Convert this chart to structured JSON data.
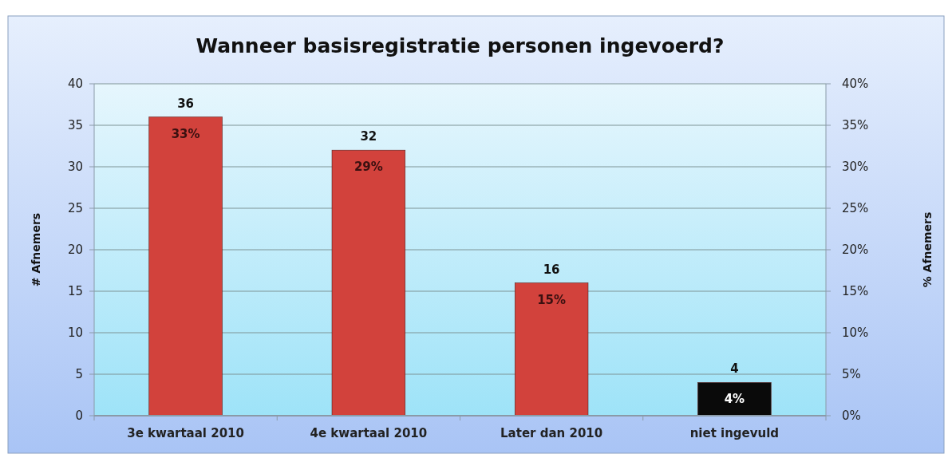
{
  "chart_data": {
    "type": "bar",
    "title": "Wanneer basisregistratie personen ingevoerd?",
    "ylabel": "# Afnemers",
    "y2label": "% Afnemers",
    "categories": [
      "3e kwartaal 2010",
      "4e kwartaal 2010",
      "Later dan 2010",
      "niet ingevuld"
    ],
    "values": [
      36,
      32,
      16,
      4
    ],
    "colors": [
      "#d2423c",
      "#d2423c",
      "#d2423c",
      "#0a0a0a"
    ],
    "data_labels": true,
    "annotations": [
      {
        "text": "33%",
        "x": "3e kwartaal 2010",
        "y": 36
      },
      {
        "text": "29%",
        "x": "4e kwartaal 2010",
        "y": 32
      },
      {
        "text": "15%",
        "x": "Later dan 2010",
        "y": 16
      },
      {
        "text": "4%",
        "x": "niet ingevuld",
        "y": 4
      }
    ],
    "ylim": [
      0,
      40
    ],
    "yticks": [
      0,
      5,
      10,
      15,
      20,
      25,
      30,
      35,
      40
    ],
    "y2lim": [
      0,
      40
    ],
    "y2ticks": [
      {
        "value": 0,
        "label": "0%"
      },
      {
        "value": 5,
        "label": "5%"
      },
      {
        "value": 10,
        "label": "10%"
      },
      {
        "value": 15,
        "label": "15%"
      },
      {
        "value": 20,
        "label": "20%"
      },
      {
        "value": 25,
        "label": "25%"
      },
      {
        "value": 30,
        "label": "30%"
      },
      {
        "value": 35,
        "label": "35%"
      },
      {
        "value": 40,
        "label": "40%"
      }
    ],
    "grid": "y"
  }
}
